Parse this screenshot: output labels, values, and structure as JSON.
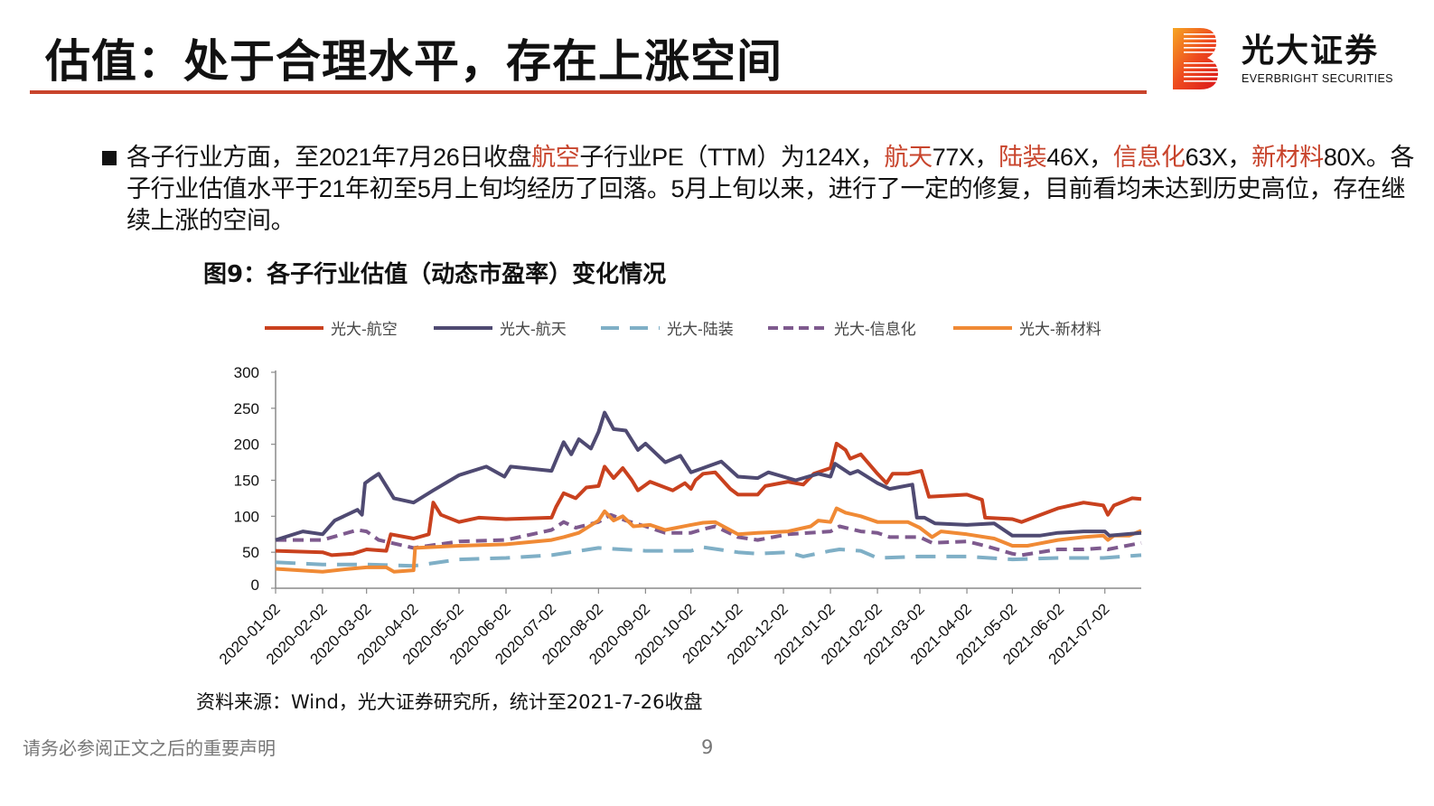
{
  "header": {
    "title": "估值：处于合理水平，存在上涨空间",
    "accent_color": "#c8442c"
  },
  "logo": {
    "cn": "光大证券",
    "en": "EVERBRIGHT SECURITIES"
  },
  "paragraph": [
    {
      "text": "各子行业方面，至2021年7月26日收盘",
      "hl": false
    },
    {
      "text": "航空",
      "hl": true
    },
    {
      "text": "子行业PE（TTM）为124X，",
      "hl": false
    },
    {
      "text": "航天",
      "hl": true
    },
    {
      "text": "77X，",
      "hl": false
    },
    {
      "text": "陆装",
      "hl": true
    },
    {
      "text": "46X，",
      "hl": false
    },
    {
      "text": "信息化",
      "hl": true
    },
    {
      "text": "63X，",
      "hl": false
    },
    {
      "text": "新材料",
      "hl": true
    },
    {
      "text": "80X。各子行业估值水平于21年初至5月上旬均经历了回落。5月上旬以来，进行了一定的修复，目前看均未达到历史高位，存在继续上涨的空间。",
      "hl": false
    }
  ],
  "figure_title": "图9：各子行业估值（动态市盈率）变化情况",
  "source": "资料来源：Wind，光大证券研究所，统计至2021-7-26收盘",
  "footer": {
    "disclaimer": "请务必参阅正文之后的重要声明",
    "page": "9"
  },
  "chart_data": {
    "type": "line",
    "title": "",
    "xlabel": "",
    "ylabel": "",
    "ylim": [
      0,
      300
    ],
    "yticks": [
      "0",
      "50",
      "100",
      "150",
      "200",
      "250",
      "300"
    ],
    "xlim": [
      "2020-01-02",
      "2021-07-26"
    ],
    "xticks": [
      "2020-01-02",
      "2020-02-02",
      "2020-03-02",
      "2020-04-02",
      "2020-05-02",
      "2020-06-02",
      "2020-07-02",
      "2020-08-02",
      "2020-09-02",
      "2020-10-02",
      "2020-11-02",
      "2020-12-02",
      "2021-01-02",
      "2021-02-02",
      "2021-03-02",
      "2021-04-02",
      "2021-05-02",
      "2021-06-02",
      "2021-07-02"
    ],
    "grid": false,
    "legend": "top",
    "series": [
      {
        "name": "光大-航空",
        "color": "#c9411e",
        "dash": "solid",
        "points": [
          [
            "2020-01-02",
            52
          ],
          [
            "2020-02-02",
            50
          ],
          [
            "2020-02-08",
            46
          ],
          [
            "2020-02-22",
            48
          ],
          [
            "2020-03-02",
            54
          ],
          [
            "2020-03-15",
            52
          ],
          [
            "2020-03-18",
            75
          ],
          [
            "2020-04-02",
            69
          ],
          [
            "2020-04-12",
            75
          ],
          [
            "2020-04-15",
            119
          ],
          [
            "2020-04-20",
            102
          ],
          [
            "2020-05-02",
            92
          ],
          [
            "2020-05-15",
            98
          ],
          [
            "2020-06-02",
            96
          ],
          [
            "2020-07-02",
            98
          ],
          [
            "2020-07-05",
            113
          ],
          [
            "2020-07-10",
            132
          ],
          [
            "2020-07-18",
            125
          ],
          [
            "2020-07-25",
            140
          ],
          [
            "2020-08-02",
            142
          ],
          [
            "2020-08-06",
            169
          ],
          [
            "2020-08-12",
            153
          ],
          [
            "2020-08-18",
            167
          ],
          [
            "2020-08-24",
            150
          ],
          [
            "2020-08-28",
            136
          ],
          [
            "2020-09-05",
            148
          ],
          [
            "2020-09-20",
            136
          ],
          [
            "2020-09-28",
            146
          ],
          [
            "2020-10-02",
            138
          ],
          [
            "2020-10-05",
            150
          ],
          [
            "2020-10-10",
            159
          ],
          [
            "2020-10-18",
            161
          ],
          [
            "2020-10-28",
            138
          ],
          [
            "2020-11-02",
            130
          ],
          [
            "2020-11-15",
            130
          ],
          [
            "2020-11-20",
            142
          ],
          [
            "2020-12-05",
            148
          ],
          [
            "2020-12-15",
            144
          ],
          [
            "2020-12-22",
            159
          ],
          [
            "2021-01-02",
            167
          ],
          [
            "2021-01-06",
            201
          ],
          [
            "2021-01-12",
            192
          ],
          [
            "2021-01-15",
            180
          ],
          [
            "2021-01-22",
            186
          ],
          [
            "2021-02-02",
            159
          ],
          [
            "2021-02-08",
            146
          ],
          [
            "2021-02-12",
            159
          ],
          [
            "2021-02-22",
            159
          ],
          [
            "2021-03-03",
            163
          ],
          [
            "2021-03-08",
            127
          ],
          [
            "2021-04-02",
            130
          ],
          [
            "2021-04-12",
            123
          ],
          [
            "2021-04-14",
            98
          ],
          [
            "2021-05-02",
            96
          ],
          [
            "2021-05-08",
            92
          ],
          [
            "2021-06-01",
            111
          ],
          [
            "2021-06-18",
            119
          ],
          [
            "2021-07-01",
            115
          ],
          [
            "2021-07-04",
            102
          ],
          [
            "2021-07-08",
            115
          ],
          [
            "2021-07-20",
            125
          ],
          [
            "2021-07-26",
            124
          ]
        ]
      },
      {
        "name": "光大-航天",
        "color": "#4f4a72",
        "dash": "solid",
        "points": [
          [
            "2020-01-02",
            67
          ],
          [
            "2020-01-20",
            79
          ],
          [
            "2020-02-02",
            75
          ],
          [
            "2020-02-10",
            94
          ],
          [
            "2020-02-25",
            109
          ],
          [
            "2020-02-28",
            102
          ],
          [
            "2020-03-01",
            146
          ],
          [
            "2020-03-05",
            152
          ],
          [
            "2020-03-10",
            159
          ],
          [
            "2020-03-20",
            125
          ],
          [
            "2020-04-02",
            119
          ],
          [
            "2020-04-15",
            136
          ],
          [
            "2020-05-02",
            157
          ],
          [
            "2020-05-20",
            169
          ],
          [
            "2020-06-01",
            155
          ],
          [
            "2020-06-05",
            169
          ],
          [
            "2020-07-02",
            163
          ],
          [
            "2020-07-10",
            203
          ],
          [
            "2020-07-15",
            186
          ],
          [
            "2020-07-20",
            207
          ],
          [
            "2020-07-28",
            194
          ],
          [
            "2020-08-02",
            217
          ],
          [
            "2020-08-06",
            244
          ],
          [
            "2020-08-12",
            221
          ],
          [
            "2020-08-20",
            219
          ],
          [
            "2020-08-28",
            192
          ],
          [
            "2020-09-02",
            201
          ],
          [
            "2020-09-15",
            175
          ],
          [
            "2020-09-25",
            184
          ],
          [
            "2020-10-02",
            161
          ],
          [
            "2020-10-10",
            167
          ],
          [
            "2020-10-22",
            176
          ],
          [
            "2020-11-02",
            155
          ],
          [
            "2020-11-15",
            153
          ],
          [
            "2020-11-22",
            161
          ],
          [
            "2020-12-10",
            150
          ],
          [
            "2020-12-25",
            159
          ],
          [
            "2021-01-02",
            155
          ],
          [
            "2021-01-05",
            173
          ],
          [
            "2021-01-15",
            159
          ],
          [
            "2021-01-20",
            163
          ],
          [
            "2021-02-02",
            146
          ],
          [
            "2021-02-10",
            138
          ],
          [
            "2021-02-25",
            144
          ],
          [
            "2021-02-28",
            98
          ],
          [
            "2021-03-05",
            98
          ],
          [
            "2021-03-12",
            90
          ],
          [
            "2021-04-02",
            88
          ],
          [
            "2021-04-20",
            90
          ],
          [
            "2021-05-02",
            73
          ],
          [
            "2021-05-20",
            73
          ],
          [
            "2021-06-01",
            77
          ],
          [
            "2021-06-18",
            79
          ],
          [
            "2021-07-02",
            79
          ],
          [
            "2021-07-05",
            73
          ],
          [
            "2021-07-26",
            77
          ]
        ]
      },
      {
        "name": "光大-陆装",
        "color": "#7fafc6",
        "dash": "long",
        "points": [
          [
            "2020-01-02",
            36
          ],
          [
            "2020-02-02",
            33
          ],
          [
            "2020-03-02",
            33
          ],
          [
            "2020-04-02",
            31
          ],
          [
            "2020-05-02",
            40
          ],
          [
            "2020-06-02",
            42
          ],
          [
            "2020-07-02",
            46
          ],
          [
            "2020-08-02",
            56
          ],
          [
            "2020-09-02",
            52
          ],
          [
            "2020-10-02",
            52
          ],
          [
            "2020-10-10",
            57
          ],
          [
            "2020-11-02",
            50
          ],
          [
            "2020-11-15",
            48
          ],
          [
            "2020-12-05",
            50
          ],
          [
            "2020-12-15",
            44
          ],
          [
            "2021-01-02",
            52
          ],
          [
            "2021-01-08",
            54
          ],
          [
            "2021-01-22",
            52
          ],
          [
            "2021-02-02",
            42
          ],
          [
            "2021-03-02",
            44
          ],
          [
            "2021-04-02",
            44
          ],
          [
            "2021-05-02",
            40
          ],
          [
            "2021-06-01",
            42
          ],
          [
            "2021-07-01",
            42
          ],
          [
            "2021-07-26",
            46
          ]
        ]
      },
      {
        "name": "光大-信息化",
        "color": "#7e5a8e",
        "dash": "medium",
        "points": [
          [
            "2020-01-02",
            67
          ],
          [
            "2020-02-02",
            67
          ],
          [
            "2020-02-25",
            81
          ],
          [
            "2020-03-02",
            79
          ],
          [
            "2020-03-10",
            67
          ],
          [
            "2020-04-02",
            56
          ],
          [
            "2020-05-02",
            65
          ],
          [
            "2020-06-02",
            67
          ],
          [
            "2020-07-02",
            81
          ],
          [
            "2020-07-10",
            92
          ],
          [
            "2020-07-18",
            84
          ],
          [
            "2020-08-02",
            92
          ],
          [
            "2020-08-10",
            102
          ],
          [
            "2020-08-20",
            94
          ],
          [
            "2020-09-02",
            86
          ],
          [
            "2020-09-15",
            77
          ],
          [
            "2020-10-02",
            77
          ],
          [
            "2020-10-10",
            82
          ],
          [
            "2020-10-18",
            86
          ],
          [
            "2020-11-02",
            71
          ],
          [
            "2020-11-15",
            67
          ],
          [
            "2020-12-05",
            75
          ],
          [
            "2021-01-02",
            79
          ],
          [
            "2021-01-08",
            86
          ],
          [
            "2021-01-22",
            79
          ],
          [
            "2021-02-02",
            77
          ],
          [
            "2021-02-10",
            71
          ],
          [
            "2021-03-02",
            71
          ],
          [
            "2021-03-10",
            63
          ],
          [
            "2021-04-02",
            65
          ],
          [
            "2021-04-14",
            59
          ],
          [
            "2021-05-02",
            48
          ],
          [
            "2021-05-08",
            46
          ],
          [
            "2021-06-01",
            54
          ],
          [
            "2021-06-18",
            54
          ],
          [
            "2021-07-01",
            56
          ],
          [
            "2021-07-04",
            54
          ],
          [
            "2021-07-26",
            63
          ]
        ]
      },
      {
        "name": "光大-新材料",
        "color": "#f08a35",
        "dash": "solid",
        "points": [
          [
            "2020-01-02",
            27
          ],
          [
            "2020-02-02",
            23
          ],
          [
            "2020-02-20",
            27
          ],
          [
            "2020-03-02",
            29
          ],
          [
            "2020-03-15",
            29
          ],
          [
            "2020-03-20",
            23
          ],
          [
            "2020-04-02",
            25
          ],
          [
            "2020-04-03",
            56
          ],
          [
            "2020-05-02",
            59
          ],
          [
            "2020-06-02",
            61
          ],
          [
            "2020-07-02",
            67
          ],
          [
            "2020-07-10",
            71
          ],
          [
            "2020-07-20",
            77
          ],
          [
            "2020-08-02",
            94
          ],
          [
            "2020-08-06",
            107
          ],
          [
            "2020-08-12",
            94
          ],
          [
            "2020-08-18",
            100
          ],
          [
            "2020-08-25",
            86
          ],
          [
            "2020-09-05",
            88
          ],
          [
            "2020-09-15",
            81
          ],
          [
            "2020-10-02",
            88
          ],
          [
            "2020-10-10",
            91
          ],
          [
            "2020-10-18",
            92
          ],
          [
            "2020-11-02",
            75
          ],
          [
            "2020-11-15",
            77
          ],
          [
            "2020-12-05",
            79
          ],
          [
            "2020-12-20",
            86
          ],
          [
            "2020-12-25",
            94
          ],
          [
            "2021-01-02",
            92
          ],
          [
            "2021-01-06",
            111
          ],
          [
            "2021-01-12",
            105
          ],
          [
            "2021-01-22",
            100
          ],
          [
            "2021-02-02",
            92
          ],
          [
            "2021-02-22",
            92
          ],
          [
            "2021-03-02",
            84
          ],
          [
            "2021-03-10",
            71
          ],
          [
            "2021-03-16",
            79
          ],
          [
            "2021-04-02",
            75
          ],
          [
            "2021-04-20",
            69
          ],
          [
            "2021-05-02",
            59
          ],
          [
            "2021-05-12",
            59
          ],
          [
            "2021-06-01",
            67
          ],
          [
            "2021-06-18",
            71
          ],
          [
            "2021-07-01",
            73
          ],
          [
            "2021-07-04",
            67
          ],
          [
            "2021-07-08",
            73
          ],
          [
            "2021-07-18",
            73
          ],
          [
            "2021-07-26",
            80
          ]
        ]
      }
    ]
  }
}
